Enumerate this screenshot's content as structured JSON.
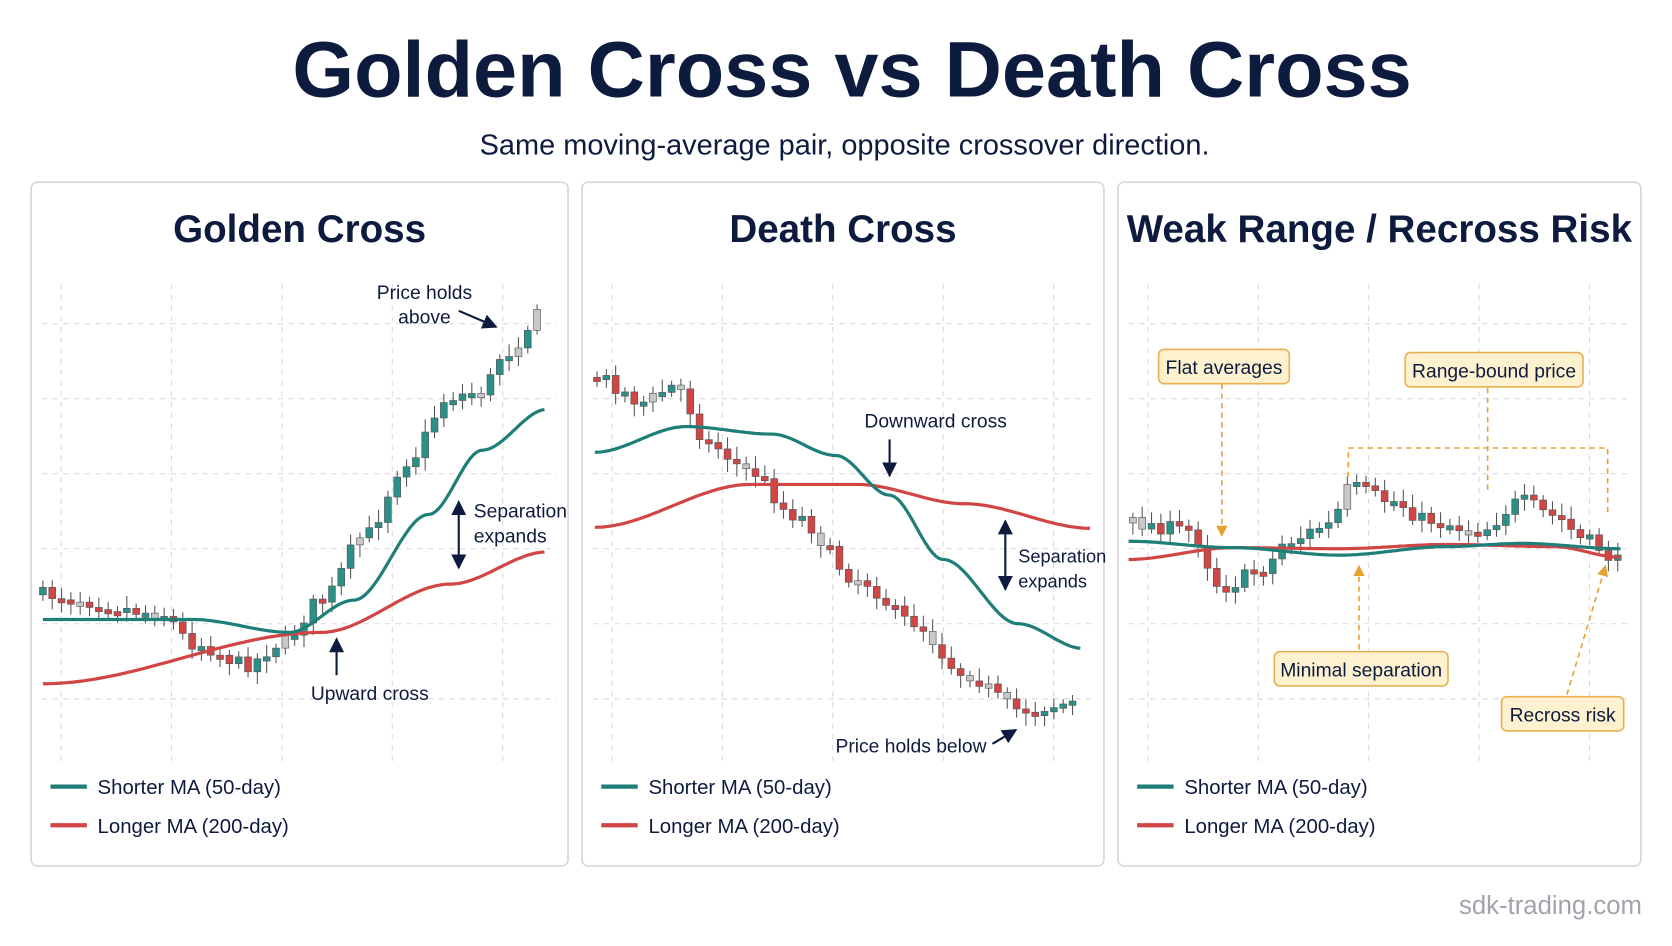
{
  "title": "Golden Cross vs Death Cross",
  "subtitle": "Same moving-average pair, opposite crossover direction.",
  "panels": [
    {
      "title": "Golden Cross",
      "annotations": [
        [
          "Price holds",
          "above"
        ],
        [
          "Separation",
          "expands"
        ],
        [
          "Upward cross"
        ]
      ],
      "legend": [
        "Shorter MA (50-day)",
        "Longer MA (200-day)"
      ]
    },
    {
      "title": "Death Cross",
      "annotations": [
        [
          "Downward cross"
        ],
        [
          "Separation",
          "expands"
        ],
        [
          "Price holds below"
        ]
      ],
      "legend": [
        "Shorter MA (50-day)",
        "Longer MA (200-day)"
      ]
    },
    {
      "title": "Weak Range / Recross Risk",
      "annotations": [
        [
          "Flat averages"
        ],
        [
          "Range-bound price"
        ],
        [
          "Minimal separation"
        ],
        [
          "Recross risk"
        ]
      ],
      "legend": [
        "Shorter MA (50-day)",
        "Longer MA (200-day)"
      ]
    }
  ],
  "footer": "sdk-trading.com"
}
